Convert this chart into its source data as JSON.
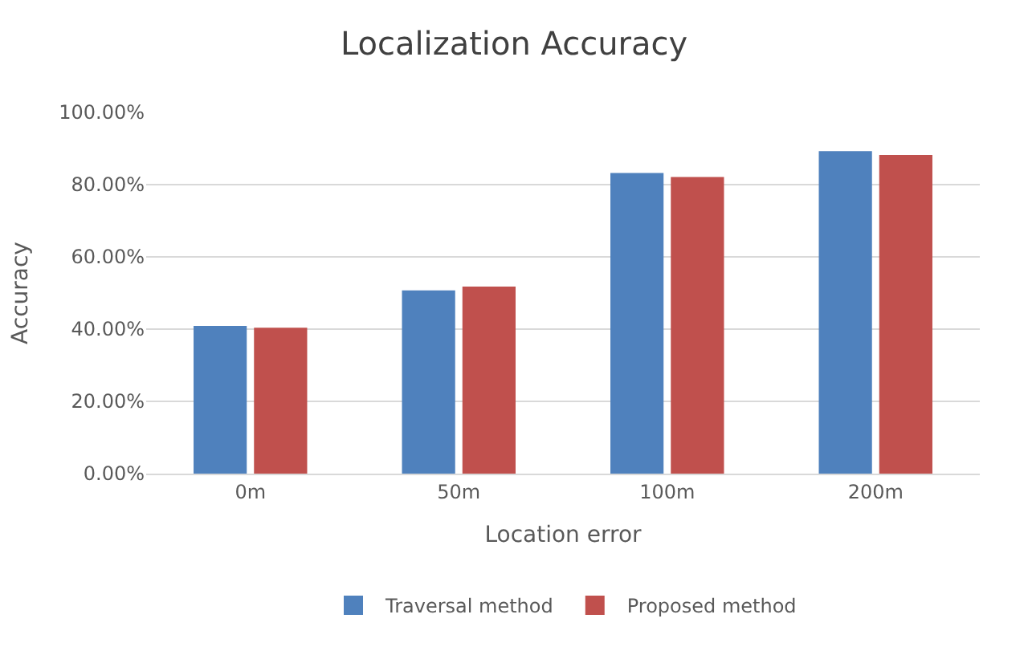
{
  "chart_data": {
    "type": "bar",
    "title": "Localization Accuracy",
    "xlabel": "Location error",
    "ylabel": "Accuracy",
    "categories": [
      "0m",
      "50m",
      "100m",
      "200m"
    ],
    "series": [
      {
        "name": "Traversal method",
        "color": "#4f81bd",
        "values": [
          40.9,
          50.7,
          83.2,
          89.3
        ]
      },
      {
        "name": "Proposed method",
        "color": "#c0504d",
        "values": [
          40.4,
          51.8,
          82.1,
          88.2
        ]
      }
    ],
    "ylim": [
      0,
      100
    ],
    "yticks": [
      {
        "value": 0,
        "label": "0.00%"
      },
      {
        "value": 20,
        "label": "20.00%"
      },
      {
        "value": 40,
        "label": "40.00%"
      },
      {
        "value": 60,
        "label": "60.00%"
      },
      {
        "value": 80,
        "label": "80.00%"
      },
      {
        "value": 100,
        "label": "100.00%"
      }
    ],
    "grid": "y",
    "legend": "bottom"
  }
}
